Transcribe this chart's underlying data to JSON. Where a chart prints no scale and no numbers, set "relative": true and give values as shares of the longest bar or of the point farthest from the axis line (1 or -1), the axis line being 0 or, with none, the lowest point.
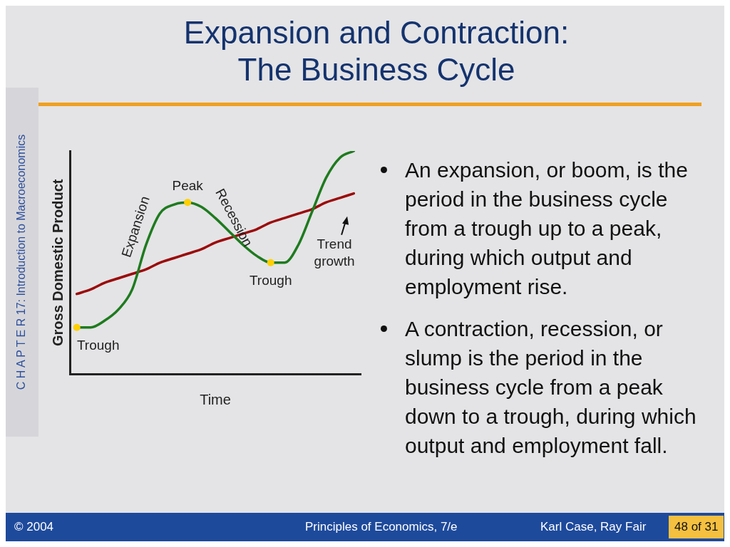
{
  "chart_data": {
    "type": "line",
    "title": "Expansion and Contraction:\nThe Business Cycle",
    "xlabel": "Time",
    "ylabel": "Gross Domestic Product",
    "relative": true,
    "grid": false,
    "legend": false,
    "marker": "none",
    "line_style": "solid",
    "categories": [
      null,
      null,
      null,
      null,
      null,
      null,
      null,
      null,
      null,
      null,
      null,
      null,
      null,
      null,
      null,
      null,
      null,
      null,
      null,
      null,
      null
    ],
    "series": [
      {
        "color": "#1e7b1e",
        "values": [
          0.21,
          0.21,
          0.24,
          0.29,
          0.38,
          0.58,
          0.72,
          0.76,
          0.77,
          0.75,
          0.7,
          0.64,
          0.58,
          0.53,
          0.5,
          0.5,
          0.58,
          0.73,
          0.88,
          0.97,
          1
        ]
      },
      {
        "color": "#9b0a0a",
        "values": [
          0.36,
          0.38,
          0.41,
          0.43,
          0.45,
          0.47,
          0.5,
          0.52,
          0.54,
          0.56,
          0.59,
          0.61,
          0.63,
          0.65,
          0.68,
          0.7,
          0.72,
          0.74,
          0.77,
          0.79,
          0.81
        ]
      }
    ],
    "annotations": [
      {
        "text": "Peak",
        "y": 0.77
      },
      {
        "text": "Trough",
        "y": 0.21
      },
      {
        "text": "Trough",
        "y": 0.5
      },
      "Expansion",
      "Recession",
      "Trend growth",
      "An expansion, or boom, is the period in the business cycle from a trough up to a peak, during which output and employment rise.",
      "A contraction, recession, or slump is the period in the business cycle from a peak down to a trough, during which output and employment fall.",
      "C H A P T E R 17: Introduction to Macroeconomics",
      "© 2004",
      "Principles of Economics, 7/e",
      "Karl Case, Ray Fair",
      "48 of 31"
    ]
  }
}
